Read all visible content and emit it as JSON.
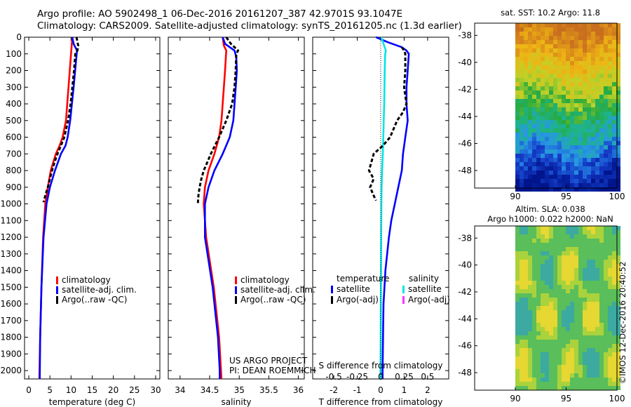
{
  "header": {
    "line1": "Argo profile: AO 5902498_1 06-Dec-2016 20161207_387 42.9701S 93.1047E",
    "line2": "Climatology: CARS2009. Satellite-adjusted climatology: synTS_20161205.nc (1.3d earlier)"
  },
  "credits": {
    "project": "US ARGO PROJECT",
    "pi": "PI: DEAN ROEMMICH"
  },
  "stamp": "©IMOS 12-Dec-2016 20:40:52",
  "colors": {
    "climatology": "#ff0000",
    "satellite": "#0000ff",
    "argo": "#000000",
    "sat_salinity": "#00e5e5",
    "argo_salinity": "#ff33ff"
  },
  "chart_data": [
    {
      "type": "line",
      "id": "temperature",
      "xlabel": "temperature (deg C)",
      "xlim": [
        -1,
        31
      ],
      "xticks": [
        0,
        5,
        10,
        15,
        20,
        25,
        30
      ],
      "ylim": [
        0,
        2050
      ],
      "yticks": [
        0,
        100,
        200,
        300,
        400,
        500,
        600,
        700,
        800,
        900,
        1000,
        1100,
        1200,
        1300,
        1400,
        1500,
        1600,
        1700,
        1800,
        1900,
        2000
      ],
      "yticklabels": [
        "0",
        "100",
        "200",
        "300",
        "400",
        "500",
        "600",
        "700",
        "800",
        "900",
        "1000",
        "1100",
        "1200",
        "1300",
        "1400",
        "1500",
        "1600",
        "1700",
        "1800",
        "1900",
        "2000"
      ],
      "legend": [
        "climatology",
        "satellite-adj. clim.",
        "Argo(..raw -QC)"
      ],
      "series": [
        {
          "name": "climatology",
          "color": "#ff0000",
          "y": [
            0,
            100,
            300,
            500,
            600,
            650,
            700,
            800,
            900,
            1000,
            1200,
            1500,
            1800,
            2050
          ],
          "x": [
            10.3,
            10.0,
            9.4,
            8.8,
            8.0,
            7.3,
            6.4,
            5.2,
            4.5,
            3.9,
            3.4,
            3.0,
            2.7,
            2.5
          ]
        },
        {
          "name": "satellite-adj. clim.",
          "color": "#0000ff",
          "y": [
            0,
            40,
            80,
            300,
            500,
            600,
            650,
            700,
            800,
            900,
            1000,
            1200,
            1500,
            1800,
            2050
          ],
          "x": [
            10.3,
            10.6,
            11.4,
            10.6,
            9.8,
            9.2,
            8.7,
            7.6,
            6.2,
            5.0,
            4.2,
            3.5,
            3.0,
            2.7,
            2.6
          ]
        },
        {
          "name": "Argo(..raw -QC)",
          "color": "#000000",
          "dashed": true,
          "y": [
            0,
            30,
            50,
            80,
            100,
            200,
            300,
            400,
            500,
            600,
            650,
            700,
            750,
            800,
            850,
            900,
            950,
            990
          ],
          "x": [
            11.3,
            11.5,
            11.7,
            11.5,
            11.0,
            10.7,
            10.3,
            9.9,
            9.3,
            8.4,
            7.6,
            6.8,
            6.1,
            5.5,
            5.0,
            4.5,
            3.9,
            3.5
          ]
        }
      ]
    },
    {
      "type": "line",
      "id": "salinity",
      "xlabel": "salinity",
      "xlim": [
        33.8,
        36.1
      ],
      "xticks": [
        34,
        34.5,
        35,
        35.5,
        36
      ],
      "ylim": [
        0,
        2050
      ],
      "legend": [
        "climatology",
        "satellite-adj. clim.",
        "Argo(..raw -QC)"
      ],
      "series": [
        {
          "name": "climatology",
          "color": "#ff0000",
          "y": [
            0,
            50,
            80,
            200,
            300,
            400,
            500,
            600,
            700,
            800,
            900,
            1000,
            1200,
            1500,
            1800,
            2050
          ],
          "x": [
            34.72,
            34.74,
            34.78,
            34.76,
            34.74,
            34.72,
            34.7,
            34.66,
            34.58,
            34.48,
            34.42,
            34.4,
            34.44,
            34.57,
            34.66,
            34.7
          ]
        },
        {
          "name": "satellite-adj. clim.",
          "color": "#0000ff",
          "y": [
            0,
            40,
            80,
            120,
            200,
            300,
            400,
            500,
            600,
            700,
            800,
            900,
            1000,
            1200,
            1500,
            1800,
            2000,
            2050
          ],
          "x": [
            34.72,
            34.76,
            34.92,
            34.95,
            34.96,
            34.94,
            34.92,
            34.9,
            34.84,
            34.72,
            34.58,
            34.48,
            34.42,
            34.42,
            34.55,
            34.64,
            34.67,
            34.67
          ]
        },
        {
          "name": "Argo(..raw -QC)",
          "color": "#000000",
          "dashed": true,
          "y": [
            0,
            40,
            60,
            80,
            100,
            200,
            300,
            400,
            500,
            600,
            700,
            750,
            800,
            850,
            900,
            950,
            1000
          ],
          "x": [
            34.78,
            34.86,
            34.92,
            34.98,
            34.95,
            34.94,
            34.92,
            34.88,
            34.78,
            34.66,
            34.52,
            34.46,
            34.4,
            34.36,
            34.33,
            34.31,
            34.3
          ]
        }
      ]
    },
    {
      "type": "line",
      "id": "difference",
      "xlabel": "T difference from climatology",
      "xlabel2": "S difference from climatology",
      "xlim": [
        -2.9,
        2.9
      ],
      "xticks": [
        -2,
        -1,
        0,
        1,
        2
      ],
      "sxticks": [
        -0.5,
        -0.25,
        0,
        0.25,
        0.5
      ],
      "ylim": [
        0,
        2050
      ],
      "legend_titles": [
        "temperature",
        "salinity"
      ],
      "legend": [
        "satellite",
        "Argo(-adj)",
        "satellite",
        "Argo(-adj)"
      ],
      "series": [
        {
          "name": "satellite",
          "group": "temperature",
          "color": "#0000ff",
          "y": [
            0,
            30,
            60,
            80,
            100,
            200,
            300,
            400,
            500,
            600,
            700,
            800,
            900,
            1000,
            1100,
            1200,
            1400,
            1600,
            1800,
            2000,
            2050
          ],
          "x": [
            -0.2,
            0.3,
            0.9,
            1.1,
            1.2,
            1.15,
            1.1,
            1.1,
            1.15,
            1.05,
            0.95,
            0.9,
            0.75,
            0.6,
            0.45,
            0.35,
            0.2,
            0.12,
            0.1,
            0.08,
            0.08
          ]
        },
        {
          "name": "satellite",
          "group": "salinity",
          "color": "#00e5e5",
          "y": [
            0,
            80,
            100,
            200,
            300,
            400,
            500,
            600,
            700,
            800,
            900,
            1000,
            1200,
            1500,
            1800,
            2000,
            2050
          ],
          "x": [
            0.02,
            0.22,
            0.19,
            0.17,
            0.16,
            0.15,
            0.13,
            0.11,
            0.09,
            0.06,
            0.04,
            0.03,
            0.02,
            0.01,
            0.0,
            -0.01,
            -0.01
          ]
        },
        {
          "name": "Argo(-adj)",
          "group": "temperature",
          "color": "#000000",
          "dashed": true,
          "y": [
            60,
            80,
            100,
            200,
            300,
            400,
            450,
            500,
            600,
            650,
            700,
            800,
            850,
            900,
            950,
            980
          ],
          "x": [
            0.9,
            1.0,
            1.05,
            1.05,
            1.0,
            1.1,
            0.95,
            0.7,
            0.4,
            0.1,
            -0.3,
            -0.5,
            -0.3,
            -0.45,
            -0.3,
            -0.2
          ]
        }
      ]
    },
    {
      "type": "heatmap",
      "id": "sst-map",
      "title": "sat. SST: 10.2 Argo: 11.8",
      "xlim": [
        86,
        100
      ],
      "ylim": [
        -49.3,
        -37.1
      ],
      "xticks": [
        90,
        95,
        100
      ],
      "yticks": [
        -38,
        -40,
        -42,
        -44,
        -46,
        -48
      ]
    },
    {
      "type": "heatmap",
      "id": "sla-map",
      "title": "Altim. SLA: 0.038",
      "title2": "Argo h1000: 0.022 h2000: NaN",
      "xlim": [
        86,
        100
      ],
      "ylim": [
        -49.3,
        -37.1
      ],
      "xticks": [
        90,
        95,
        100
      ],
      "yticks": [
        -38,
        -40,
        -42,
        -44,
        -46,
        -48
      ]
    }
  ]
}
